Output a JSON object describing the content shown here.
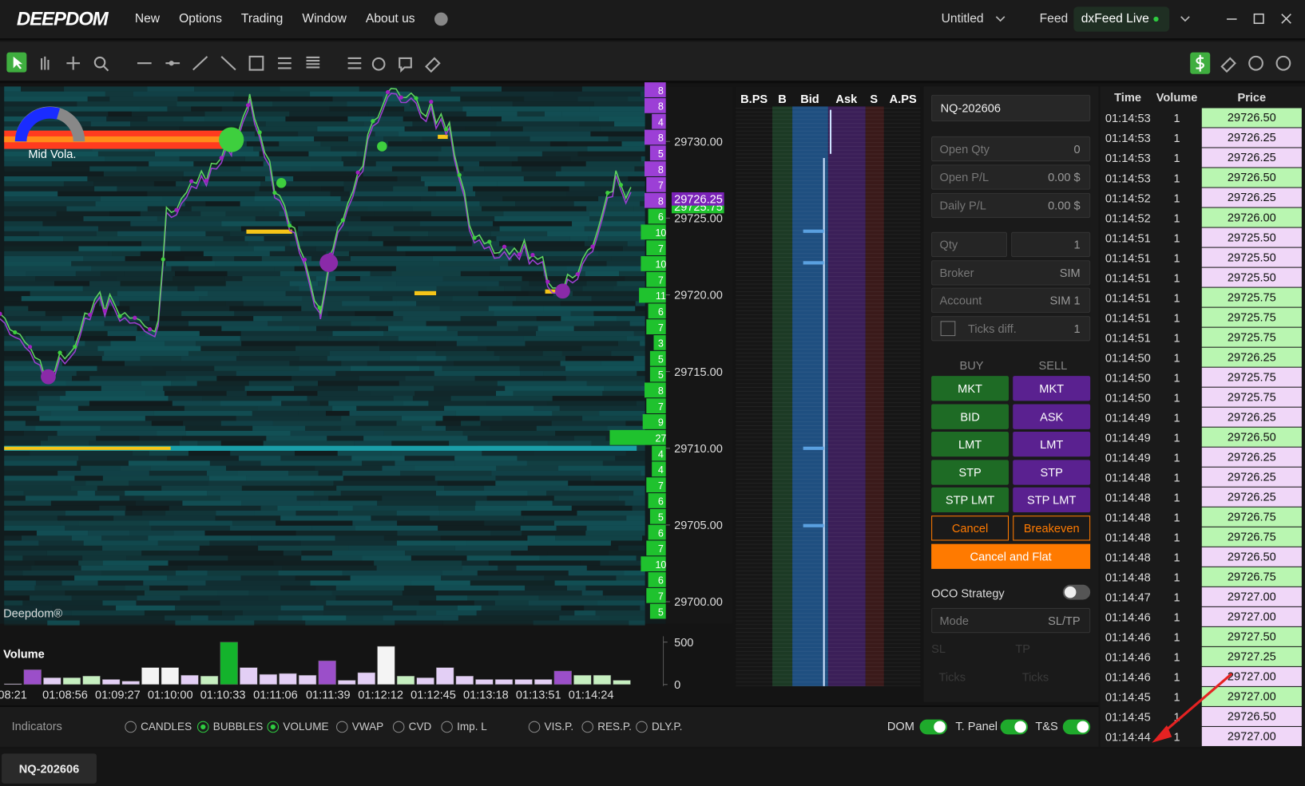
{
  "menu": {
    "logo": "DEEPDOM",
    "items": [
      "New",
      "Options",
      "Trading",
      "Window",
      "About us"
    ],
    "workspace": "Untitled",
    "feed_label": "Feed",
    "feed": "dxFeed Live"
  },
  "chart": {
    "indicator_label": "Mid Vola.",
    "watermark": "Deepdom®",
    "price_axis": {
      "ylim": [
        29698.56,
        29733.58
      ],
      "yticks": [
        {
          "value": 29730,
          "label": "29730.00"
        },
        {
          "value": 29725,
          "label": "29725.00"
        },
        {
          "value": 29720,
          "label": "29720.00"
        },
        {
          "value": 29715,
          "label": "29715.00"
        },
        {
          "value": 29710,
          "label": "29710.00"
        },
        {
          "value": 29705,
          "label": "29705.00"
        },
        {
          "value": 29700,
          "label": "29700.00"
        }
      ]
    },
    "prev_price": {
      "value": 29725.75,
      "label": "29725.75"
    },
    "last_price": {
      "value": 29726.25,
      "label": "29726.25"
    },
    "profile": {
      "values": [
        8,
        8,
        4,
        8,
        5,
        8,
        7,
        8,
        6,
        10,
        7,
        10,
        7,
        11,
        6,
        7,
        3,
        5,
        5,
        8,
        7,
        9,
        27,
        4,
        4,
        7,
        6,
        5,
        6,
        7,
        10,
        6,
        7,
        5
      ],
      "colors": [
        "#9c3fd6",
        "#9c3fd6",
        "#9c3fd6",
        "#9c3fd6",
        "#9c3fd6",
        "#9c3fd6",
        "#9c3fd6",
        "#9c3fd6",
        "#1fc22e",
        "#1fc22e",
        "#1fc22e",
        "#1fc22e",
        "#1fc22e",
        "#1fc22e",
        "#1fc22e",
        "#1fc22e",
        "#1fc22e",
        "#1fc22e",
        "#1fc22e",
        "#1fc22e",
        "#1fc22e",
        "#1fc22e",
        "#1fc22e",
        "#1fc22e",
        "#1fc22e",
        "#1fc22e",
        "#1fc22e",
        "#1fc22e",
        "#1fc22e",
        "#1fc22e",
        "#1fc22e",
        "#1fc22e",
        "#1fc22e",
        "#1fc22e"
      ]
    },
    "volume": {
      "title": "Volume",
      "ylim": [
        0,
        500
      ],
      "yticks": [
        0,
        500
      ],
      "values": [
        10,
        175,
        80,
        80,
        100,
        60,
        40,
        200,
        200,
        110,
        100,
        500,
        200,
        120,
        130,
        110,
        280,
        50,
        140,
        450,
        100,
        80,
        200,
        100,
        60,
        60,
        60,
        60,
        160,
        110,
        110,
        50
      ],
      "colors": [
        "#e3cff5",
        "#9b4fc9",
        "#e3cff5",
        "#c6efc0",
        "#c6efc0",
        "#e3cff5",
        "#e3cff5",
        "#f4f4f4",
        "#f4f4f4",
        "#e3cff5",
        "#c6efc0",
        "#14b32c",
        "#e3cff5",
        "#e3cff5",
        "#e3cff5",
        "#e3cff5",
        "#9b4fc9",
        "#e3cff5",
        "#e3cff5",
        "#f4f4f4",
        "#c6efc0",
        "#e3cff5",
        "#e3cff5",
        "#e3cff5",
        "#e3cff5",
        "#e3cff5",
        "#e3cff5",
        "#e3cff5",
        "#9b4fc9",
        "#c6efc0",
        "#c6efc0",
        "#c6efc0"
      ]
    },
    "time_labels": [
      "08:21",
      "01:08:56",
      "01:09:27",
      "01:10:00",
      "01:10:33",
      "01:11:06",
      "01:11:39",
      "01:12:12",
      "01:12:45",
      "01:13:18",
      "01:13:51",
      "01:14:24"
    ]
  },
  "dom": {
    "headers": [
      "B.PS",
      "B",
      "Bid",
      "Ask",
      "S",
      "A.PS"
    ]
  },
  "order_panel": {
    "symbol": "NQ-202606",
    "fields": [
      {
        "label": "Open Qty",
        "value": "0"
      },
      {
        "label": "Open P/L",
        "value": "0.00 $"
      },
      {
        "label": "Daily P/L",
        "value": "0.00 $"
      }
    ],
    "qty": {
      "label": "Qty",
      "value": "1"
    },
    "broker": {
      "label": "Broker",
      "value": "SIM"
    },
    "account": {
      "label": "Account",
      "value": "SIM 1"
    },
    "ticks_diff": {
      "label": "Ticks diff.",
      "value": "1"
    },
    "buy_label": "BUY",
    "sell_label": "SELL",
    "buttons": [
      [
        "MKT",
        "MKT"
      ],
      [
        "BID",
        "ASK"
      ],
      [
        "LMT",
        "LMT"
      ],
      [
        "STP",
        "STP"
      ],
      [
        "STP LMT",
        "STP LMT"
      ]
    ],
    "cancel": "Cancel",
    "breakeven": "Breakeven",
    "cancel_flat": "Cancel and Flat",
    "oco": "OCO Strategy",
    "mode": {
      "label": "Mode",
      "value": "SL/TP"
    },
    "sl": "SL",
    "tp": "TP",
    "ticks": [
      "Ticks",
      "Ticks"
    ]
  },
  "time_and_sales": {
    "headers": [
      "Time",
      "Volume",
      "Price"
    ],
    "rows": [
      {
        "time": "01:14:53",
        "volume": "1",
        "price": "29726.50",
        "color": "#b9f6b1"
      },
      {
        "time": "01:14:53",
        "volume": "1",
        "price": "29726.25",
        "color": "#f0d7f8"
      },
      {
        "time": "01:14:53",
        "volume": "1",
        "price": "29726.25",
        "color": "#f0d7f8"
      },
      {
        "time": "01:14:53",
        "volume": "1",
        "price": "29726.50",
        "color": "#b9f6b1"
      },
      {
        "time": "01:14:52",
        "volume": "1",
        "price": "29726.25",
        "color": "#f0d7f8"
      },
      {
        "time": "01:14:52",
        "volume": "1",
        "price": "29726.00",
        "color": "#b9f6b1"
      },
      {
        "time": "01:14:51",
        "volume": "1",
        "price": "29725.50",
        "color": "#f0d7f8"
      },
      {
        "time": "01:14:51",
        "volume": "1",
        "price": "29725.50",
        "color": "#f0d7f8"
      },
      {
        "time": "01:14:51",
        "volume": "1",
        "price": "29725.50",
        "color": "#f0d7f8"
      },
      {
        "time": "01:14:51",
        "volume": "1",
        "price": "29725.75",
        "color": "#b9f6b1"
      },
      {
        "time": "01:14:51",
        "volume": "1",
        "price": "29725.75",
        "color": "#b9f6b1"
      },
      {
        "time": "01:14:51",
        "volume": "1",
        "price": "29725.75",
        "color": "#b9f6b1"
      },
      {
        "time": "01:14:50",
        "volume": "1",
        "price": "29726.25",
        "color": "#b9f6b1"
      },
      {
        "time": "01:14:50",
        "volume": "1",
        "price": "29725.75",
        "color": "#f0d7f8"
      },
      {
        "time": "01:14:50",
        "volume": "1",
        "price": "29725.75",
        "color": "#f0d7f8"
      },
      {
        "time": "01:14:49",
        "volume": "1",
        "price": "29726.25",
        "color": "#f0d7f8"
      },
      {
        "time": "01:14:49",
        "volume": "1",
        "price": "29726.50",
        "color": "#b9f6b1"
      },
      {
        "time": "01:14:49",
        "volume": "1",
        "price": "29726.25",
        "color": "#f0d7f8"
      },
      {
        "time": "01:14:48",
        "volume": "1",
        "price": "29726.25",
        "color": "#f0d7f8"
      },
      {
        "time": "01:14:48",
        "volume": "1",
        "price": "29726.25",
        "color": "#f0d7f8"
      },
      {
        "time": "01:14:48",
        "volume": "1",
        "price": "29726.75",
        "color": "#b9f6b1"
      },
      {
        "time": "01:14:48",
        "volume": "1",
        "price": "29726.75",
        "color": "#b9f6b1"
      },
      {
        "time": "01:14:48",
        "volume": "1",
        "price": "29726.50",
        "color": "#f0d7f8"
      },
      {
        "time": "01:14:48",
        "volume": "1",
        "price": "29726.75",
        "color": "#b9f6b1"
      },
      {
        "time": "01:14:47",
        "volume": "1",
        "price": "29727.00",
        "color": "#f0d7f8"
      },
      {
        "time": "01:14:46",
        "volume": "1",
        "price": "29727.00",
        "color": "#f0d7f8"
      },
      {
        "time": "01:14:46",
        "volume": "1",
        "price": "29727.50",
        "color": "#b9f6b1"
      },
      {
        "time": "01:14:46",
        "volume": "1",
        "price": "29727.25",
        "color": "#b9f6b1"
      },
      {
        "time": "01:14:46",
        "volume": "1",
        "price": "29727.00",
        "color": "#f0d7f8"
      },
      {
        "time": "01:14:45",
        "volume": "1",
        "price": "29727.00",
        "color": "#b9f6b1"
      },
      {
        "time": "01:14:45",
        "volume": "1",
        "price": "29726.50",
        "color": "#f0d7f8"
      },
      {
        "time": "01:14:44",
        "volume": "1",
        "price": "29727.00",
        "color": "#f0d7f8"
      }
    ]
  },
  "bottom_bar": {
    "indicators_label": "Indicators",
    "options": [
      {
        "label": "CANDLES",
        "checked": false
      },
      {
        "label": "BUBBLES",
        "checked": true
      },
      {
        "label": "VOLUME",
        "checked": true
      },
      {
        "label": "VWAP",
        "checked": false
      },
      {
        "label": "CVD",
        "checked": false
      },
      {
        "label": "Imp. L",
        "checked": false
      },
      {
        "label": "VIS.P.",
        "checked": false
      },
      {
        "label": "RES.P.",
        "checked": false
      },
      {
        "label": "DLY.P.",
        "checked": false
      }
    ],
    "toggles": [
      {
        "label": "DOM",
        "on": true
      },
      {
        "label": "T. Panel",
        "on": true
      },
      {
        "label": "T&S",
        "on": true
      }
    ]
  },
  "tabs": [
    "NQ-202606"
  ]
}
